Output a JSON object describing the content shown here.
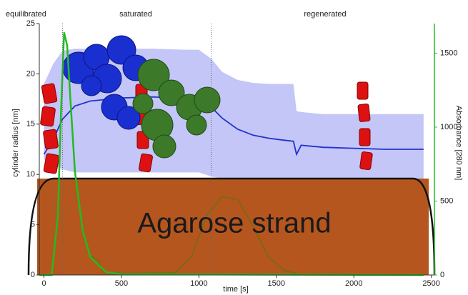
{
  "chart_data": {
    "type": "line",
    "xlabel": "time [s]",
    "ylabel": "cylinder radius [nm]",
    "y2label": "Absorbance [280 nm]",
    "annotations": [
      "equilibrated",
      "saturated",
      "regenerated",
      "Agarose strand"
    ],
    "phase_boundaries": [
      120,
      1080
    ],
    "xlim": [
      -30,
      2520
    ],
    "xticks": [
      0,
      500,
      1000,
      1500,
      2000,
      2500
    ],
    "ylim": [
      0,
      25
    ],
    "yticks": [
      0,
      5,
      10,
      15,
      20,
      25
    ],
    "y2lim": [
      0,
      1700
    ],
    "y2ticks": [
      0,
      500,
      1000,
      1500
    ],
    "y2color": "#22bb22",
    "band": {
      "color": "#b8bcf6",
      "x": [
        0,
        60,
        120,
        200,
        300,
        500,
        700,
        900,
        1000,
        1080,
        1150,
        1250,
        1350,
        1450,
        1550,
        1610,
        1630,
        1660,
        1800,
        2000,
        2200,
        2450
      ],
      "upper": [
        19,
        21,
        22.3,
        22.5,
        22.5,
        22.5,
        22.5,
        22.4,
        22.4,
        21.5,
        20.2,
        19.4,
        19.1,
        19.0,
        19.0,
        19.0,
        16.3,
        16.2,
        16.0,
        16.0,
        16.0,
        16.0
      ],
      "lower": [
        11.5,
        11,
        10.5,
        10.2,
        10.2,
        10.2,
        10.2,
        10.2,
        10.2,
        9.8,
        9.6,
        9.5,
        9.5,
        9.5,
        9.5,
        9.5,
        9.5,
        9.5,
        9.5,
        9.5,
        9.5,
        9.5
      ]
    },
    "series": [
      {
        "color": "#2233cc",
        "x": [
          0,
          60,
          120,
          200,
          300,
          500,
          700,
          900,
          1000,
          1080,
          1150,
          1250,
          1350,
          1450,
          1550,
          1610,
          1630,
          1660,
          1800,
          2000,
          2200,
          2450
        ],
        "values": [
          12.0,
          13.5,
          15.5,
          16.8,
          17.3,
          17.6,
          17.7,
          17.6,
          17.3,
          16.7,
          15.6,
          14.5,
          13.9,
          13.6,
          13.4,
          13.3,
          12.0,
          12.9,
          12.7,
          12.6,
          12.5,
          12.5
        ]
      },
      {
        "color": "#7a6a10",
        "axis": "y2",
        "x": [
          300,
          350,
          380,
          500,
          850,
          950,
          1050,
          1150,
          1250,
          1350,
          1450,
          1550,
          1650,
          2450
        ],
        "values": [
          130,
          100,
          20,
          10,
          15,
          120,
          400,
          530,
          510,
          330,
          120,
          30,
          5,
          0
        ]
      },
      {
        "color": "#22bb22",
        "axis": "y2",
        "x": [
          -30,
          50,
          90,
          110,
          130,
          150,
          170,
          200,
          250,
          300,
          400,
          500,
          2450
        ],
        "values": [
          0,
          0,
          400,
          1100,
          1640,
          1550,
          1200,
          700,
          300,
          120,
          20,
          5,
          0
        ]
      }
    ]
  }
}
